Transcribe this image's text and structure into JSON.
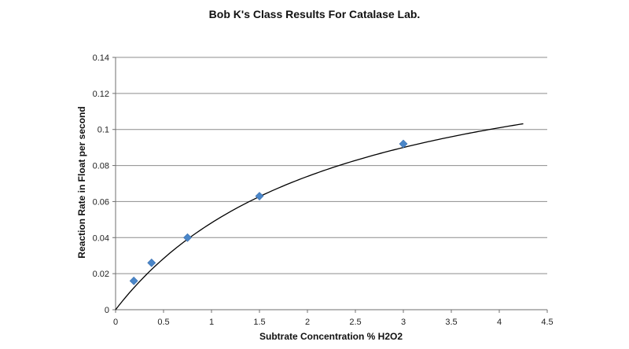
{
  "chart_data": {
    "type": "scatter",
    "title": "Bob K's Class Results For Catalase Lab.",
    "xlabel": "Subtrate Concentration % H2O2",
    "ylabel": "Reaction Rate in Float per second",
    "xlim": [
      0,
      4.5
    ],
    "ylim": [
      0,
      0.14
    ],
    "x_ticks": [
      "0",
      "0.5",
      "1",
      "1.5",
      "2",
      "2.5",
      "3",
      "3.5",
      "4",
      "4.5"
    ],
    "y_ticks": [
      "0",
      "0.02",
      "0.04",
      "0.06",
      "0.08",
      "0.1",
      "0.12",
      "0.14"
    ],
    "grid": "horizontal",
    "legend": "none",
    "series": [
      {
        "x": [
          0.19,
          0.375,
          0.75,
          1.5,
          3.0
        ],
        "y": [
          0.016,
          0.026,
          0.04,
          0.063,
          0.092
        ],
        "color": "#4a86c8",
        "marker": "diamond"
      }
    ],
    "trendline": {
      "type": "hyperbolic",
      "vmax": 0.159,
      "km": 2.3,
      "x_range": [
        0,
        4.25
      ],
      "color": "#000000"
    }
  }
}
